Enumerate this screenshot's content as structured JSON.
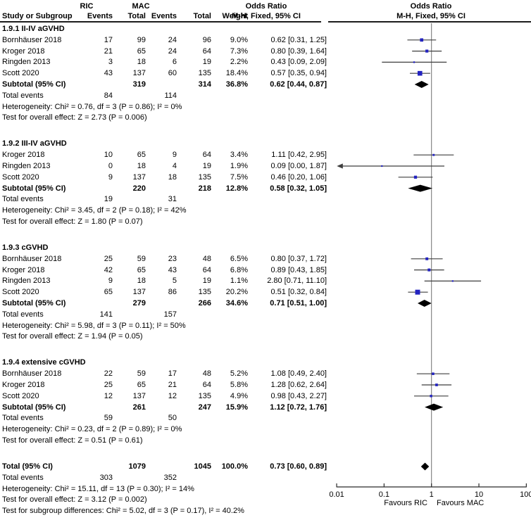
{
  "header": {
    "study_col": "Study or Subgroup",
    "group_ric": "RIC",
    "group_mac": "MAC",
    "events_col": "Events",
    "total_col": "Total",
    "weight_col": "Weight",
    "odds_ratio": "Odds Ratio",
    "method": "M-H, Fixed, 95% CI"
  },
  "chart_data": {
    "type": "forest",
    "effect_measure": "Odds Ratio",
    "method": "M-H, Fixed, 95% CI",
    "axis": {
      "scale": "log",
      "min": 0.01,
      "max": 100,
      "ticks": [
        {
          "label": "0.01",
          "value": 0.01
        },
        {
          "label": "0.1",
          "value": 0.1
        },
        {
          "label": "1",
          "value": 1
        },
        {
          "label": "10",
          "value": 10
        },
        {
          "label": "100",
          "value": 100
        }
      ],
      "favours_left": "Favours RIC",
      "favours_right": "Favours MAC"
    },
    "colors": {
      "marker": "#2323c0",
      "diamond": "#000000",
      "ci_line": "#3f3f3f",
      "no_effect_line": "#6e6e6e",
      "axis": "#2b2b2b"
    },
    "sections": [
      {
        "label": "1.9.1 II-IV aGVHD",
        "studies": [
          {
            "name": "Bornhäuser 2018",
            "ric_events": "17",
            "ric_total": "99",
            "mac_events": "24",
            "mac_total": "96",
            "weight": "9.0%",
            "weight_pct": 9.0,
            "ci_text": "0.62 [0.31, 1.25]",
            "or": 0.62,
            "low": 0.31,
            "high": 1.25
          },
          {
            "name": "Kroger 2018",
            "ric_events": "21",
            "ric_total": "65",
            "mac_events": "24",
            "mac_total": "64",
            "weight": "7.3%",
            "weight_pct": 7.3,
            "ci_text": "0.80 [0.39, 1.64]",
            "or": 0.8,
            "low": 0.39,
            "high": 1.64
          },
          {
            "name": "Ringden 2013",
            "ric_events": "3",
            "ric_total": "18",
            "mac_events": "6",
            "mac_total": "19",
            "weight": "2.2%",
            "weight_pct": 2.2,
            "ci_text": "0.43 [0.09, 2.09]",
            "or": 0.43,
            "low": 0.09,
            "high": 2.09
          },
          {
            "name": "Scott 2020",
            "ric_events": "43",
            "ric_total": "137",
            "mac_events": "60",
            "mac_total": "135",
            "weight": "18.4%",
            "weight_pct": 18.4,
            "ci_text": "0.57 [0.35, 0.94]",
            "or": 0.57,
            "low": 0.35,
            "high": 0.94
          }
        ],
        "subtotal": {
          "label": "Subtotal (95% CI)",
          "ric_total": "319",
          "mac_total": "314",
          "weight": "36.8%",
          "ci_text": "0.62 [0.44, 0.87]",
          "or": 0.62,
          "low": 0.44,
          "high": 0.87
        },
        "total_events": {
          "label": "Total events",
          "ric": "84",
          "mac": "114"
        },
        "heterogeneity": "Heterogeneity: Chi² = 0.76, df = 3 (P = 0.86); I² = 0%",
        "overall_effect": "Test for overall effect: Z = 2.73 (P = 0.006)"
      },
      {
        "label": "1.9.2 III-IV aGVHD",
        "studies": [
          {
            "name": "Kroger 2018",
            "ric_events": "10",
            "ric_total": "65",
            "mac_events": "9",
            "mac_total": "64",
            "weight": "3.4%",
            "weight_pct": 3.4,
            "ci_text": "1.11 [0.42, 2.95]",
            "or": 1.11,
            "low": 0.42,
            "high": 2.95
          },
          {
            "name": "Ringden 2013",
            "ric_events": "0",
            "ric_total": "18",
            "mac_events": "4",
            "mac_total": "19",
            "weight": "1.9%",
            "weight_pct": 1.9,
            "ci_text": "0.09 [0.00, 1.87]",
            "or": 0.09,
            "low": 0.0,
            "high": 1.87,
            "clip_low": true
          },
          {
            "name": "Scott 2020",
            "ric_events": "9",
            "ric_total": "137",
            "mac_events": "18",
            "mac_total": "135",
            "weight": "7.5%",
            "weight_pct": 7.5,
            "ci_text": "0.46 [0.20, 1.06]",
            "or": 0.46,
            "low": 0.2,
            "high": 1.06
          }
        ],
        "subtotal": {
          "label": "Subtotal (95% CI)",
          "ric_total": "220",
          "mac_total": "218",
          "weight": "12.8%",
          "ci_text": "0.58 [0.32, 1.05]",
          "or": 0.58,
          "low": 0.32,
          "high": 1.05
        },
        "total_events": {
          "label": "Total events",
          "ric": "19",
          "mac": "31"
        },
        "heterogeneity": "Heterogeneity: Chi² = 3.45, df = 2 (P = 0.18); I² = 42%",
        "overall_effect": "Test for overall effect: Z = 1.80 (P = 0.07)"
      },
      {
        "label": "1.9.3 cGVHD",
        "studies": [
          {
            "name": "Bornhäuser 2018",
            "ric_events": "25",
            "ric_total": "59",
            "mac_events": "23",
            "mac_total": "48",
            "weight": "6.5%",
            "weight_pct": 6.5,
            "ci_text": "0.80 [0.37, 1.72]",
            "or": 0.8,
            "low": 0.37,
            "high": 1.72
          },
          {
            "name": "Kroger 2018",
            "ric_events": "42",
            "ric_total": "65",
            "mac_events": "43",
            "mac_total": "64",
            "weight": "6.8%",
            "weight_pct": 6.8,
            "ci_text": "0.89 [0.43, 1.85]",
            "or": 0.89,
            "low": 0.43,
            "high": 1.85
          },
          {
            "name": "Ringden 2013",
            "ric_events": "9",
            "ric_total": "18",
            "mac_events": "5",
            "mac_total": "19",
            "weight": "1.1%",
            "weight_pct": 1.1,
            "ci_text": "2.80 [0.71, 11.10]",
            "or": 2.8,
            "low": 0.71,
            "high": 11.1
          },
          {
            "name": "Scott 2020",
            "ric_events": "65",
            "ric_total": "137",
            "mac_events": "86",
            "mac_total": "135",
            "weight": "20.2%",
            "weight_pct": 20.2,
            "ci_text": "0.51 [0.32, 0.84]",
            "or": 0.51,
            "low": 0.32,
            "high": 0.84
          }
        ],
        "subtotal": {
          "label": "Subtotal (95% CI)",
          "ric_total": "279",
          "mac_total": "266",
          "weight": "34.6%",
          "ci_text": "0.71 [0.51, 1.00]",
          "or": 0.71,
          "low": 0.51,
          "high": 1.0
        },
        "total_events": {
          "label": "Total events",
          "ric": "141",
          "mac": "157"
        },
        "heterogeneity": "Heterogeneity: Chi² = 5.98, df = 3 (P = 0.11); I² = 50%",
        "overall_effect": "Test for overall effect: Z = 1.94 (P = 0.05)"
      },
      {
        "label": "1.9.4 extensive cGVHD",
        "studies": [
          {
            "name": "Bornhäuser 2018",
            "ric_events": "22",
            "ric_total": "59",
            "mac_events": "17",
            "mac_total": "48",
            "weight": "5.2%",
            "weight_pct": 5.2,
            "ci_text": "1.08 [0.49, 2.40]",
            "or": 1.08,
            "low": 0.49,
            "high": 2.4
          },
          {
            "name": "Kroger 2018",
            "ric_events": "25",
            "ric_total": "65",
            "mac_events": "21",
            "mac_total": "64",
            "weight": "5.8%",
            "weight_pct": 5.8,
            "ci_text": "1.28 [0.62, 2.64]",
            "or": 1.28,
            "low": 0.62,
            "high": 2.64
          },
          {
            "name": "Scott 2020",
            "ric_events": "12",
            "ric_total": "137",
            "mac_events": "12",
            "mac_total": "135",
            "weight": "4.9%",
            "weight_pct": 4.9,
            "ci_text": "0.98 [0.43, 2.27]",
            "or": 0.98,
            "low": 0.43,
            "high": 2.27
          }
        ],
        "subtotal": {
          "label": "Subtotal (95% CI)",
          "ric_total": "261",
          "mac_total": "247",
          "weight": "15.9%",
          "ci_text": "1.12 [0.72, 1.76]",
          "or": 1.12,
          "low": 0.72,
          "high": 1.76
        },
        "total_events": {
          "label": "Total events",
          "ric": "59",
          "mac": "50"
        },
        "heterogeneity": "Heterogeneity: Chi² = 0.23, df = 2 (P = 0.89); I² = 0%",
        "overall_effect": "Test for overall effect: Z = 0.51 (P = 0.61)"
      }
    ],
    "total": {
      "label": "Total (95% CI)",
      "ric_total": "1079",
      "mac_total": "1045",
      "weight": "100.0%",
      "ci_text": "0.73 [0.60, 0.89]",
      "or": 0.73,
      "low": 0.6,
      "high": 0.89,
      "total_events": {
        "label": "Total events",
        "ric": "303",
        "mac": "352"
      },
      "heterogeneity": "Heterogeneity: Chi² = 15.11, df = 13 (P = 0.30); I² = 14%",
      "overall_effect": "Test for overall effect: Z = 3.12 (P = 0.002)",
      "subgroup_differences": "Test for subgroup differences: Chi² = 5.02, df = 3 (P = 0.17), I² = 40.2%"
    }
  }
}
